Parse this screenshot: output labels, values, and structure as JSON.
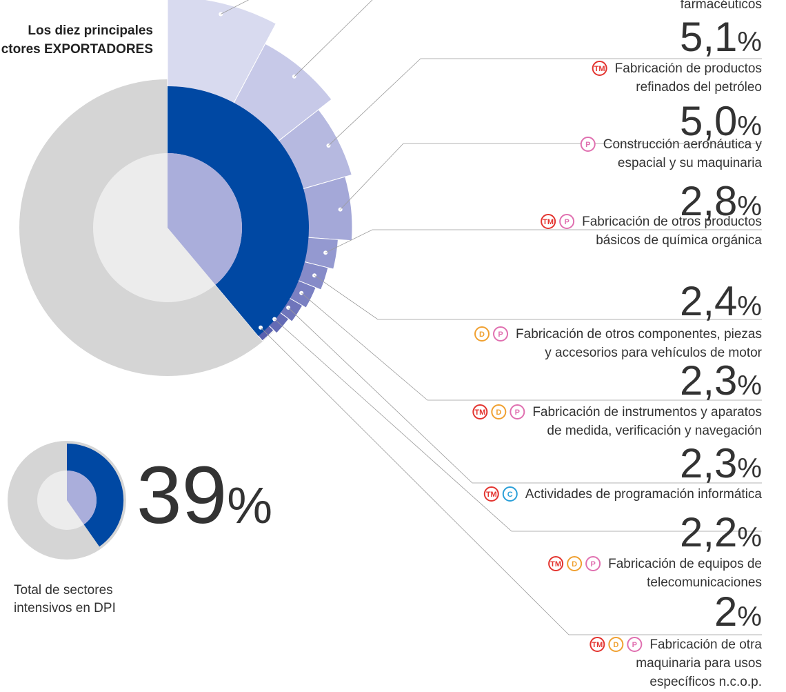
{
  "title": [
    "Los diez principales",
    "ctores EXPORTADORES"
  ],
  "unit": "%",
  "icon_colors": {
    "TM": "#e3342f",
    "D": "#f0a030",
    "P": "#e070b0",
    "C": "#2a9fd8"
  },
  "items": [
    {
      "label": [
        "farmacéuticos"
      ],
      "value": "5,1"
    },
    {
      "icons": [
        "TM"
      ],
      "label": [
        "Fabricación de productos",
        "refinados del petróleo"
      ],
      "value": "5,0"
    },
    {
      "icons": [
        "P"
      ],
      "label": [
        "Construcción aeronáutica y",
        "espacial y su maquinaria"
      ],
      "value": "2,8"
    },
    {
      "icons": [
        "TM",
        "P"
      ],
      "label": [
        "Fabricación de otros productos",
        "básicos de química orgánica"
      ],
      "value": "2,4"
    },
    {
      "icons": [
        "D",
        "P"
      ],
      "label": [
        "Fabricación de otros componentes, piezas",
        "y accesorios para vehículos de motor"
      ],
      "value": "2,3"
    },
    {
      "icons": [
        "TM",
        "D",
        "P"
      ],
      "label": [
        "Fabricación de instrumentos y aparatos",
        "de medida, verificación y navegación"
      ],
      "value": "2,3"
    },
    {
      "icons": [
        "TM",
        "C"
      ],
      "label": [
        "Actividades de programación informática"
      ],
      "value": "2,2"
    },
    {
      "icons": [
        "TM",
        "D",
        "P"
      ],
      "label": [
        "Fabricación de equipos de",
        "telecomunicaciones"
      ],
      "value": "2"
    },
    {
      "icons": [
        "TM",
        "D",
        "P"
      ],
      "label": [
        "Fabricación de otra",
        "maquinaria para usos",
        "específicos n.c.o.p."
      ]
    }
  ],
  "total": {
    "value": "39",
    "label": [
      "Total de sectores",
      "intensivos en DPI"
    ]
  }
}
